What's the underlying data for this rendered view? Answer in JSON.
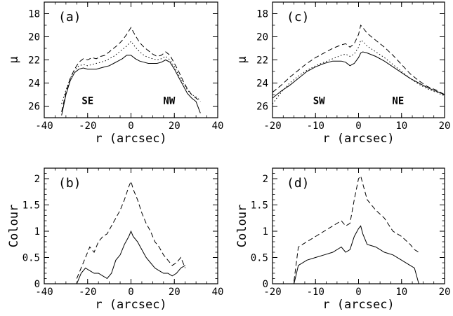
{
  "chart_data": [
    {
      "id": "a",
      "type": "line",
      "panel_label": "(a)",
      "xlabel": "r (arcsec)",
      "ylabel": "μ",
      "xlim": [
        -40,
        40
      ],
      "ylim": [
        27,
        17
      ],
      "y_inverted": true,
      "xticks": [
        -40,
        -20,
        0,
        20,
        40
      ],
      "yticks": [
        18,
        20,
        22,
        24,
        26
      ],
      "annotations": [
        "SE",
        "NW"
      ],
      "series": [
        {
          "style": "dashed",
          "x": [
            -32,
            -30,
            -28,
            -26,
            -24,
            -22,
            -20,
            -18,
            -16,
            -14,
            -12,
            -10,
            -8,
            -6,
            -4,
            -2,
            0,
            2,
            4,
            6,
            8,
            10,
            12,
            14,
            16,
            18,
            20,
            22,
            24,
            26,
            28,
            30,
            32
          ],
          "y": [
            26.5,
            24.8,
            23.6,
            22.8,
            22.2,
            21.9,
            22.0,
            21.8,
            21.9,
            21.7,
            21.6,
            21.3,
            21.0,
            20.7,
            20.3,
            19.8,
            19.2,
            19.9,
            20.5,
            20.9,
            21.2,
            21.5,
            21.7,
            21.6,
            21.3,
            21.6,
            22.3,
            23.0,
            23.8,
            24.5,
            25.0,
            25.3,
            25.6
          ]
        },
        {
          "style": "dotted",
          "x": [
            -32,
            -30,
            -28,
            -26,
            -24,
            -22,
            -20,
            -18,
            -16,
            -14,
            -12,
            -10,
            -8,
            -6,
            -4,
            -2,
            0,
            2,
            4,
            6,
            8,
            10,
            12,
            14,
            16,
            18,
            20,
            22,
            24,
            26,
            28,
            30,
            32
          ],
          "y": [
            25.8,
            24.6,
            23.6,
            22.9,
            22.5,
            22.4,
            22.5,
            22.4,
            22.3,
            22.2,
            22.1,
            21.9,
            21.7,
            21.4,
            21.1,
            20.8,
            20.4,
            20.9,
            21.3,
            21.6,
            21.8,
            21.9,
            22.0,
            21.9,
            21.7,
            22.0,
            22.6,
            23.3,
            24.0,
            24.6,
            25.0,
            25.2,
            25.5
          ]
        },
        {
          "style": "solid",
          "x": [
            -32,
            -30,
            -28,
            -26,
            -24,
            -22,
            -20,
            -18,
            -16,
            -14,
            -12,
            -10,
            -8,
            -6,
            -4,
            -2,
            0,
            2,
            4,
            6,
            8,
            10,
            12,
            14,
            16,
            18,
            20,
            22,
            24,
            26,
            28,
            30,
            32
          ],
          "y": [
            26.8,
            25.0,
            23.8,
            23.1,
            22.8,
            22.7,
            22.8,
            22.8,
            22.8,
            22.7,
            22.6,
            22.5,
            22.3,
            22.1,
            21.9,
            21.6,
            21.6,
            21.9,
            22.1,
            22.2,
            22.3,
            22.3,
            22.3,
            22.2,
            22.0,
            22.2,
            22.8,
            23.5,
            24.2,
            24.9,
            25.3,
            25.6,
            26.6
          ]
        }
      ]
    },
    {
      "id": "b",
      "type": "line",
      "panel_label": "(b)",
      "xlabel": "r (arcsec)",
      "ylabel": "Colour",
      "xlim": [
        -40,
        40
      ],
      "ylim": [
        0,
        2.2
      ],
      "xticks": [
        -40,
        -20,
        0,
        20,
        40
      ],
      "yticks": [
        0,
        0.5,
        1,
        1.5,
        2
      ],
      "series": [
        {
          "style": "dashed",
          "x": [
            -25,
            -23,
            -21,
            -19,
            -17,
            -15,
            -13,
            -11,
            -9,
            -7,
            -5,
            -3,
            -1,
            0,
            1,
            3,
            5,
            7,
            9,
            11,
            13,
            15,
            17,
            19,
            21,
            23,
            25
          ],
          "y": [
            0.1,
            0.3,
            0.5,
            0.7,
            0.6,
            0.8,
            0.9,
            0.95,
            1.1,
            1.25,
            1.4,
            1.6,
            1.85,
            1.95,
            1.8,
            1.6,
            1.35,
            1.15,
            1.0,
            0.8,
            0.7,
            0.55,
            0.45,
            0.35,
            0.4,
            0.5,
            0.3
          ]
        },
        {
          "style": "solid",
          "x": [
            -25,
            -23,
            -21,
            -19,
            -17,
            -15,
            -13,
            -11,
            -9,
            -7,
            -5,
            -3,
            -1,
            0,
            1,
            3,
            5,
            7,
            9,
            11,
            13,
            15,
            17,
            19,
            21,
            23,
            25
          ],
          "y": [
            0.0,
            0.2,
            0.3,
            0.25,
            0.2,
            0.2,
            0.15,
            0.1,
            0.2,
            0.45,
            0.55,
            0.75,
            0.9,
            1.0,
            0.9,
            0.8,
            0.65,
            0.5,
            0.4,
            0.3,
            0.25,
            0.2,
            0.2,
            0.15,
            0.2,
            0.3,
            0.35
          ]
        }
      ]
    },
    {
      "id": "c",
      "type": "line",
      "panel_label": "(c)",
      "xlabel": "r (arcsec)",
      "ylabel": "μ",
      "xlim": [
        -20,
        20
      ],
      "ylim": [
        27,
        17
      ],
      "y_inverted": true,
      "xticks": [
        -20,
        -10,
        0,
        10,
        20
      ],
      "yticks": [
        18,
        20,
        22,
        24,
        26
      ],
      "annotations": [
        "SW",
        "NE"
      ],
      "series": [
        {
          "style": "dashed",
          "x": [
            -20,
            -18,
            -16,
            -14,
            -12,
            -10,
            -8,
            -6,
            -4,
            -3,
            -2,
            -1,
            0,
            0.5,
            1,
            2,
            4,
            6,
            8,
            10,
            12,
            14,
            16,
            18,
            20
          ],
          "y": [
            24.8,
            24.2,
            23.5,
            22.9,
            22.3,
            21.8,
            21.4,
            21.0,
            20.7,
            20.6,
            20.9,
            20.6,
            19.8,
            19.0,
            19.2,
            19.7,
            20.3,
            20.9,
            21.6,
            22.4,
            23.2,
            23.8,
            24.3,
            24.6,
            25.0
          ]
        },
        {
          "style": "dotted",
          "x": [
            -20,
            -18,
            -16,
            -14,
            -12,
            -10,
            -8,
            -6,
            -4,
            -3,
            -2,
            -1,
            0,
            0.5,
            1,
            2,
            4,
            6,
            8,
            10,
            12,
            14,
            16,
            18,
            20
          ],
          "y": [
            25.8,
            24.8,
            24.0,
            23.4,
            22.9,
            22.5,
            22.2,
            21.9,
            21.6,
            21.5,
            21.7,
            21.5,
            20.9,
            20.3,
            20.4,
            20.8,
            21.3,
            21.8,
            22.4,
            23.0,
            23.6,
            24.1,
            24.5,
            24.8,
            25.1
          ]
        },
        {
          "style": "solid",
          "x": [
            -20,
            -18,
            -16,
            -14,
            -12,
            -10,
            -8,
            -6,
            -4,
            -3,
            -2,
            -1,
            0,
            0.5,
            1,
            2,
            4,
            6,
            8,
            10,
            12,
            14,
            16,
            18,
            20
          ],
          "y": [
            25.3,
            24.7,
            24.2,
            23.6,
            23.0,
            22.6,
            22.3,
            22.1,
            22.1,
            22.2,
            22.5,
            22.3,
            21.8,
            21.4,
            21.3,
            21.4,
            21.7,
            22.1,
            22.6,
            23.1,
            23.6,
            24.0,
            24.4,
            24.7,
            25.0
          ]
        }
      ]
    },
    {
      "id": "d",
      "type": "line",
      "panel_label": "(d)",
      "xlabel": "r (arcsec)",
      "ylabel": "Colour",
      "xlim": [
        -20,
        20
      ],
      "ylim": [
        0,
        2.2
      ],
      "xticks": [
        -20,
        -10,
        0,
        10,
        20
      ],
      "yticks": [
        0,
        0.5,
        1,
        1.5,
        2
      ],
      "series": [
        {
          "style": "dashed",
          "x": [
            -15,
            -14,
            -12,
            -10,
            -8,
            -6,
            -4,
            -3,
            -2,
            -1,
            0,
            0.5,
            1,
            2,
            4,
            6,
            8,
            10,
            12,
            13,
            14
          ],
          "y": [
            0.05,
            0.7,
            0.8,
            0.9,
            1.0,
            1.1,
            1.2,
            1.1,
            1.15,
            1.6,
            2.0,
            2.05,
            1.9,
            1.6,
            1.4,
            1.25,
            1.0,
            0.9,
            0.75,
            0.65,
            0.6
          ]
        },
        {
          "style": "solid",
          "x": [
            -15,
            -14,
            -12,
            -10,
            -8,
            -6,
            -4,
            -3,
            -2,
            -1,
            0,
            0.5,
            1,
            2,
            4,
            6,
            8,
            10,
            12,
            13,
            14
          ],
          "y": [
            0.0,
            0.35,
            0.45,
            0.5,
            0.55,
            0.6,
            0.7,
            0.6,
            0.65,
            0.9,
            1.05,
            1.1,
            0.95,
            0.75,
            0.7,
            0.6,
            0.55,
            0.45,
            0.35,
            0.3,
            0.0
          ]
        }
      ]
    }
  ]
}
